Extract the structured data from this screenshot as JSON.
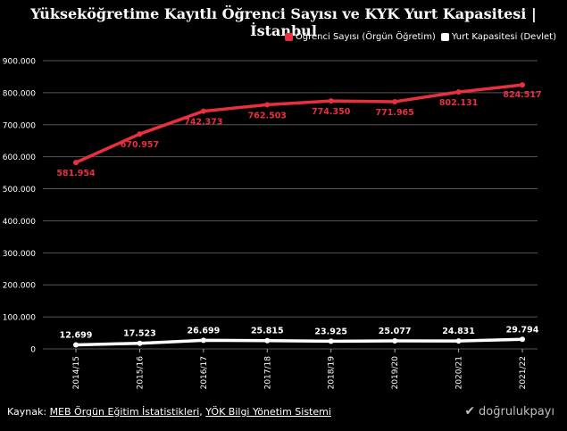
{
  "title": "Yükseköğretime Kayıtlı Öğrenci Sayısı ve KYK Yurt Kapasitesi | İstanbul",
  "source": {
    "prefix": "Kaynak:",
    "link1": "MEB Örgün Eğitim İstatistikleri",
    "sep": ",",
    "link2": "YÖK Bilgi Yönetim Sistemi"
  },
  "brand": {
    "name": "doğrulukpayı",
    "icon": "check-icon"
  },
  "colors": {
    "students": "#e8303f",
    "dorm": "#ffffff",
    "grid": "#555555",
    "background": "#000000"
  },
  "chart_data": {
    "type": "line",
    "title": "Yükseköğretime Kayıtlı Öğrenci Sayısı ve KYK Yurt Kapasitesi | İstanbul",
    "categories": [
      "2014/15",
      "2015/16",
      "2016/17",
      "2017/18",
      "2018/19",
      "2019/20",
      "2020/21",
      "2021/22"
    ],
    "ylim": [
      0,
      900000
    ],
    "yticks": [
      0,
      100000,
      200000,
      300000,
      400000,
      500000,
      600000,
      700000,
      800000,
      900000
    ],
    "ytick_labels": [
      "0",
      "100.000",
      "200.000",
      "300.000",
      "400.000",
      "500.000",
      "600.000",
      "700.000",
      "800.000",
      "900.000"
    ],
    "grid": "horizontal",
    "legend_position": "top-right",
    "series": [
      {
        "name": "Öğrenci Sayısı (Örgün Öğretim)",
        "color": "#e8303f",
        "values": [
          581954,
          670957,
          742373,
          762503,
          774350,
          771965,
          802131,
          824517
        ],
        "labels": [
          "581.954",
          "670.957",
          "742.373",
          "762.503",
          "774.350",
          "771.965",
          "802.131",
          "824.517"
        ]
      },
      {
        "name": "Yurt Kapasitesi (Devlet)",
        "color": "#ffffff",
        "values": [
          12699,
          17523,
          26699,
          25815,
          23925,
          25077,
          24831,
          29794
        ],
        "labels": [
          "12.699",
          "17.523",
          "26.699",
          "25.815",
          "23.925",
          "25.077",
          "24.831",
          "29.794"
        ]
      }
    ]
  }
}
